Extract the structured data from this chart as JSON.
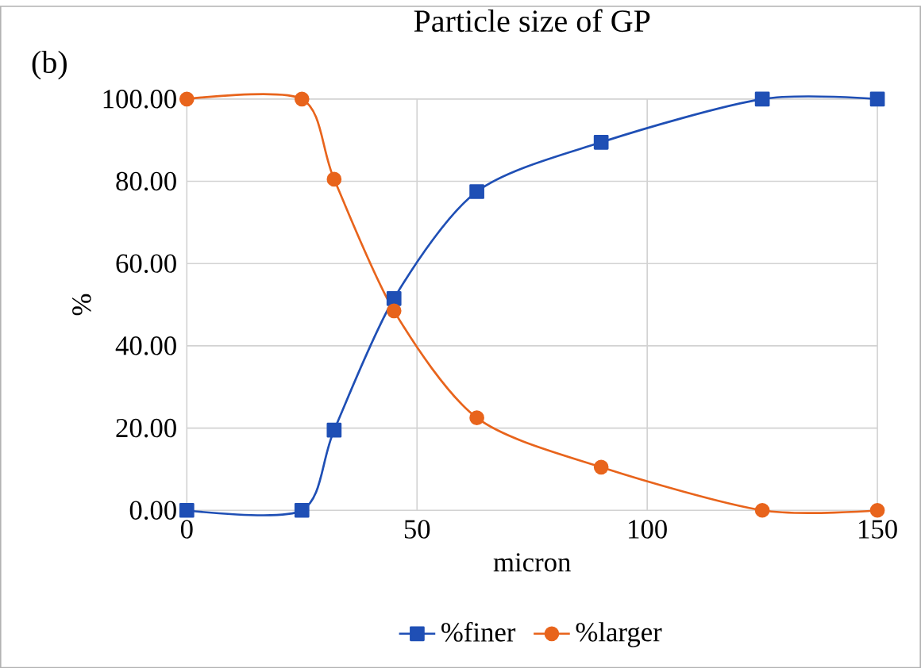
{
  "chart_data": {
    "type": "line",
    "title": "Particle size of GP",
    "xlabel": "micron",
    "ylabel": "%",
    "annotations": [
      "(b)"
    ],
    "xlim": [
      0,
      150
    ],
    "xticks": [
      0,
      50,
      100,
      150
    ],
    "ylim": [
      0,
      100
    ],
    "yticks": [
      {
        "value": 0,
        "label": "0.00"
      },
      {
        "value": 20,
        "label": "20.00"
      },
      {
        "value": 40,
        "label": "40.00"
      },
      {
        "value": 60,
        "label": "60.00"
      },
      {
        "value": 80,
        "label": "80.00"
      },
      {
        "value": 100,
        "label": "100.00"
      }
    ],
    "grid": true,
    "legend": "bottom",
    "line_style": "solid",
    "series": [
      {
        "name": "%finer",
        "color": "#1f4fb5",
        "marker": "square",
        "x": [
          0,
          25,
          32,
          45,
          63,
          90,
          125,
          150
        ],
        "values": [
          0,
          0,
          19.5,
          51.5,
          77.5,
          89.5,
          100,
          100
        ]
      },
      {
        "name": "%larger",
        "color": "#e8641c",
        "marker": "circle",
        "x": [
          0,
          25,
          32,
          45,
          63,
          90,
          125,
          150
        ],
        "values": [
          100,
          100,
          80.5,
          48.5,
          22.5,
          10.5,
          0,
          0
        ]
      }
    ]
  }
}
